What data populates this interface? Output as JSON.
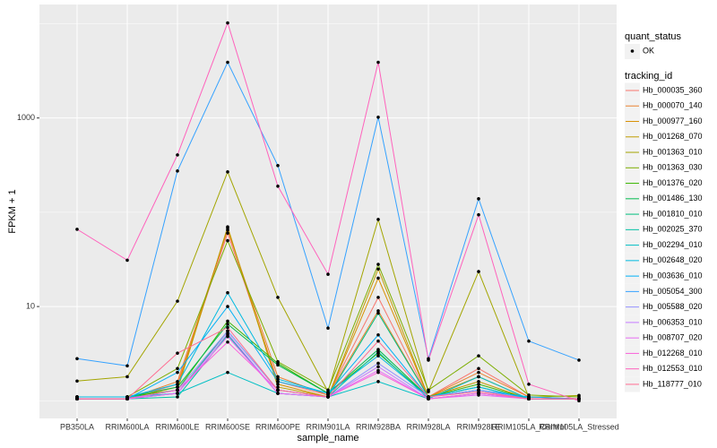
{
  "chart_data": {
    "type": "line",
    "xlabel": "sample_name",
    "ylabel": "FPKM + 1",
    "log_y": true,
    "grid": true,
    "ylim": [
      0.65,
      16000
    ],
    "yticks": [
      10,
      1000
    ],
    "categories": [
      "PB350LA",
      "RRIM600LA",
      "RRIM600LE",
      "RRIM600SE",
      "RRIM600PE",
      "RRIM901LA",
      "RRIM928BA",
      "RRIM928LA",
      "RRIM928LE",
      "RRIM105LA_Control",
      "RRIM105LA_Stressed"
    ],
    "shape_legend": {
      "title": "quant_status",
      "labels": [
        "OK"
      ]
    },
    "legend_title": "tracking_id",
    "legend_position": "right",
    "point_color": "#000000",
    "series": [
      {
        "name": "Hb_000035_360",
        "color": "#F8766D",
        "values": [
          1.05,
          1.05,
          1.5,
          60,
          1.6,
          1.15,
          12.5,
          1.1,
          2.2,
          1.1,
          1.05
        ]
      },
      {
        "name": "Hb_000070_140",
        "color": "#EA8331",
        "values": [
          1.05,
          1.05,
          1.6,
          65,
          1.8,
          1.15,
          9,
          1.1,
          2.0,
          1.1,
          1.05
        ]
      },
      {
        "name": "Hb_000977_160",
        "color": "#D89000",
        "values": [
          1.05,
          1.05,
          1.4,
          68,
          1.5,
          1.1,
          20,
          1.1,
          1.8,
          1.05,
          1.05
        ]
      },
      {
        "name": "Hb_001268_070",
        "color": "#C09B00",
        "values": [
          1.05,
          1.05,
          1.3,
          70,
          1.4,
          1.1,
          25,
          1.1,
          1.6,
          1.05,
          1.05
        ]
      },
      {
        "name": "Hb_001363_010",
        "color": "#A3A500",
        "values": [
          1.62,
          1.8,
          11.4,
          268,
          12.5,
          1.25,
          84,
          1.25,
          23.5,
          1.09,
          1.14
        ]
      },
      {
        "name": "Hb_001363_030",
        "color": "#7CAE00",
        "values": [
          1.1,
          1.1,
          2.2,
          50,
          2.6,
          1.3,
          28,
          1.3,
          3.0,
          1.15,
          1.1
        ]
      },
      {
        "name": "Hb_001376_020",
        "color": "#39B600",
        "values": [
          1.1,
          1.1,
          1.3,
          7,
          2.5,
          1.2,
          3.2,
          1.1,
          1.5,
          1.05,
          1.05
        ]
      },
      {
        "name": "Hb_001486_130",
        "color": "#00BB4E",
        "values": [
          1.1,
          1.1,
          1.4,
          6.5,
          2.4,
          1.2,
          3.5,
          1.1,
          1.4,
          1.05,
          1.05
        ]
      },
      {
        "name": "Hb_001810_010",
        "color": "#00BF7D",
        "values": [
          1.05,
          1.05,
          1.2,
          5.5,
          1.3,
          1.1,
          8.5,
          1.1,
          1.3,
          1.05,
          1.05
        ]
      },
      {
        "name": "Hb_002025_370",
        "color": "#00C1A3",
        "values": [
          1.05,
          1.05,
          1.1,
          5,
          1.2,
          1.1,
          3.3,
          1.05,
          1.2,
          1.05,
          1.05
        ]
      },
      {
        "name": "Hb_002294_010",
        "color": "#00BFC4",
        "values": [
          1.1,
          1.1,
          1.2,
          2.0,
          1.2,
          1.1,
          1.6,
          1.05,
          1.8,
          1.05,
          1.05
        ]
      },
      {
        "name": "Hb_002648_020",
        "color": "#00BAE0",
        "values": [
          1.1,
          1.1,
          1.5,
          14,
          1.7,
          1.2,
          3.0,
          1.1,
          1.4,
          1.05,
          1.05
        ]
      },
      {
        "name": "Hb_003636_010",
        "color": "#00B0F6",
        "values": [
          1.05,
          1.05,
          2.0,
          10,
          1.6,
          1.2,
          5.0,
          1.1,
          1.3,
          1.1,
          1.05
        ]
      },
      {
        "name": "Hb_005054_300",
        "color": "#35A2FF",
        "values": [
          2.8,
          2.35,
          274,
          3900,
          313,
          5.9,
          1020,
          2.8,
          139,
          4.3,
          2.7
        ]
      },
      {
        "name": "Hb_005588_020",
        "color": "#9590FF",
        "values": [
          1.05,
          1.05,
          1.3,
          5.5,
          1.3,
          1.1,
          2.5,
          1.1,
          1.3,
          1.05,
          1.05
        ]
      },
      {
        "name": "Hb_006353_010",
        "color": "#C77CFF",
        "values": [
          1.05,
          1.05,
          1.2,
          5.2,
          1.2,
          1.1,
          2.3,
          1.05,
          1.2,
          1.05,
          1.05
        ]
      },
      {
        "name": "Hb_008707_020",
        "color": "#E76BF3",
        "values": [
          1.05,
          1.05,
          1.2,
          4.8,
          1.2,
          1.1,
          2.1,
          1.05,
          1.15,
          1.05,
          1.05
        ]
      },
      {
        "name": "Hb_012268_010",
        "color": "#FA62DB",
        "values": [
          1.05,
          1.05,
          1.3,
          4.2,
          1.3,
          1.1,
          2.0,
          1.05,
          1.2,
          1.05,
          1.05
        ]
      },
      {
        "name": "Hb_012553_010",
        "color": "#FF62BC",
        "values": [
          66,
          31,
          406,
          10200,
          189,
          22,
          3900,
          2.7,
          94,
          1.5,
          1.0
        ]
      },
      {
        "name": "Hb_118777_010",
        "color": "#FF6C91",
        "values": [
          1.05,
          1.05,
          3.2,
          6,
          1.3,
          1.1,
          4.3,
          1.1,
          1.25,
          1.05,
          1.05
        ]
      }
    ]
  }
}
